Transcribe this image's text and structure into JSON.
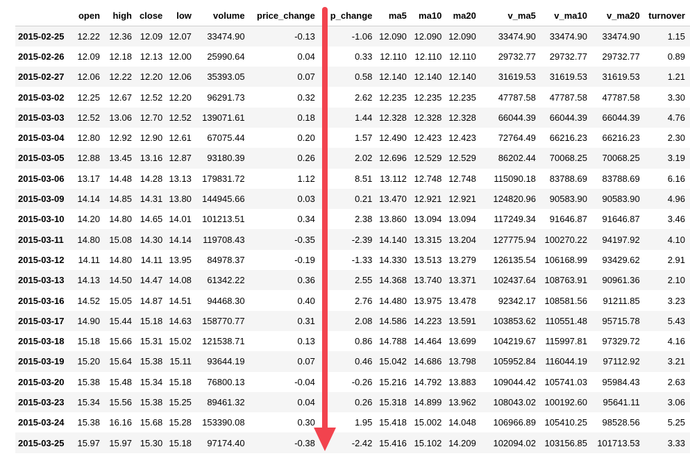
{
  "table": {
    "index_header": "",
    "columns": [
      "open",
      "high",
      "close",
      "low",
      "volume",
      "price_change",
      "p_change",
      "ma5",
      "ma10",
      "ma20",
      "v_ma5",
      "v_ma10",
      "v_ma20",
      "turnover"
    ],
    "rows": [
      {
        "date": "2015-02-25",
        "cells": [
          "12.22",
          "12.36",
          "12.09",
          "12.07",
          "33474.90",
          "-0.13",
          "-1.06",
          "12.090",
          "12.090",
          "12.090",
          "33474.90",
          "33474.90",
          "33474.90",
          "1.15"
        ]
      },
      {
        "date": "2015-02-26",
        "cells": [
          "12.09",
          "12.18",
          "12.13",
          "12.00",
          "25990.64",
          "0.04",
          "0.33",
          "12.110",
          "12.110",
          "12.110",
          "29732.77",
          "29732.77",
          "29732.77",
          "0.89"
        ]
      },
      {
        "date": "2015-02-27",
        "cells": [
          "12.06",
          "12.22",
          "12.20",
          "12.06",
          "35393.05",
          "0.07",
          "0.58",
          "12.140",
          "12.140",
          "12.140",
          "31619.53",
          "31619.53",
          "31619.53",
          "1.21"
        ]
      },
      {
        "date": "2015-03-02",
        "cells": [
          "12.25",
          "12.67",
          "12.52",
          "12.20",
          "96291.73",
          "0.32",
          "2.62",
          "12.235",
          "12.235",
          "12.235",
          "47787.58",
          "47787.58",
          "47787.58",
          "3.30"
        ]
      },
      {
        "date": "2015-03-03",
        "cells": [
          "12.52",
          "13.06",
          "12.70",
          "12.52",
          "139071.61",
          "0.18",
          "1.44",
          "12.328",
          "12.328",
          "12.328",
          "66044.39",
          "66044.39",
          "66044.39",
          "4.76"
        ]
      },
      {
        "date": "2015-03-04",
        "cells": [
          "12.80",
          "12.92",
          "12.90",
          "12.61",
          "67075.44",
          "0.20",
          "1.57",
          "12.490",
          "12.423",
          "12.423",
          "72764.49",
          "66216.23",
          "66216.23",
          "2.30"
        ]
      },
      {
        "date": "2015-03-05",
        "cells": [
          "12.88",
          "13.45",
          "13.16",
          "12.87",
          "93180.39",
          "0.26",
          "2.02",
          "12.696",
          "12.529",
          "12.529",
          "86202.44",
          "70068.25",
          "70068.25",
          "3.19"
        ]
      },
      {
        "date": "2015-03-06",
        "cells": [
          "13.17",
          "14.48",
          "14.28",
          "13.13",
          "179831.72",
          "1.12",
          "8.51",
          "13.112",
          "12.748",
          "12.748",
          "115090.18",
          "83788.69",
          "83788.69",
          "6.16"
        ]
      },
      {
        "date": "2015-03-09",
        "cells": [
          "14.14",
          "14.85",
          "14.31",
          "13.80",
          "144945.66",
          "0.03",
          "0.21",
          "13.470",
          "12.921",
          "12.921",
          "124820.96",
          "90583.90",
          "90583.90",
          "4.96"
        ]
      },
      {
        "date": "2015-03-10",
        "cells": [
          "14.20",
          "14.80",
          "14.65",
          "14.01",
          "101213.51",
          "0.34",
          "2.38",
          "13.860",
          "13.094",
          "13.094",
          "117249.34",
          "91646.87",
          "91646.87",
          "3.46"
        ]
      },
      {
        "date": "2015-03-11",
        "cells": [
          "14.80",
          "15.08",
          "14.30",
          "14.14",
          "119708.43",
          "-0.35",
          "-2.39",
          "14.140",
          "13.315",
          "13.204",
          "127775.94",
          "100270.22",
          "94197.92",
          "4.10"
        ]
      },
      {
        "date": "2015-03-12",
        "cells": [
          "14.11",
          "14.80",
          "14.11",
          "13.95",
          "84978.37",
          "-0.19",
          "-1.33",
          "14.330",
          "13.513",
          "13.279",
          "126135.54",
          "106168.99",
          "93429.62",
          "2.91"
        ]
      },
      {
        "date": "2015-03-13",
        "cells": [
          "14.13",
          "14.50",
          "14.47",
          "14.08",
          "61342.22",
          "0.36",
          "2.55",
          "14.368",
          "13.740",
          "13.371",
          "102437.64",
          "108763.91",
          "90961.36",
          "2.10"
        ]
      },
      {
        "date": "2015-03-16",
        "cells": [
          "14.52",
          "15.05",
          "14.87",
          "14.51",
          "94468.30",
          "0.40",
          "2.76",
          "14.480",
          "13.975",
          "13.478",
          "92342.17",
          "108581.56",
          "91211.85",
          "3.23"
        ]
      },
      {
        "date": "2015-03-17",
        "cells": [
          "14.90",
          "15.44",
          "15.18",
          "14.63",
          "158770.77",
          "0.31",
          "2.08",
          "14.586",
          "14.223",
          "13.591",
          "103853.62",
          "110551.48",
          "95715.78",
          "5.43"
        ]
      },
      {
        "date": "2015-03-18",
        "cells": [
          "15.18",
          "15.66",
          "15.31",
          "15.02",
          "121538.71",
          "0.13",
          "0.86",
          "14.788",
          "14.464",
          "13.699",
          "104219.67",
          "115997.81",
          "97329.72",
          "4.16"
        ]
      },
      {
        "date": "2015-03-19",
        "cells": [
          "15.20",
          "15.64",
          "15.38",
          "15.11",
          "93644.19",
          "0.07",
          "0.46",
          "15.042",
          "14.686",
          "13.798",
          "105952.84",
          "116044.19",
          "97112.92",
          "3.21"
        ]
      },
      {
        "date": "2015-03-20",
        "cells": [
          "15.38",
          "15.48",
          "15.34",
          "15.18",
          "76800.13",
          "-0.04",
          "-0.26",
          "15.216",
          "14.792",
          "13.883",
          "109044.42",
          "105741.03",
          "95984.43",
          "2.63"
        ]
      },
      {
        "date": "2015-03-23",
        "cells": [
          "15.34",
          "15.56",
          "15.38",
          "15.25",
          "89461.32",
          "0.04",
          "0.26",
          "15.318",
          "14.899",
          "13.962",
          "108043.02",
          "100192.60",
          "95641.11",
          "3.06"
        ]
      },
      {
        "date": "2015-03-24",
        "cells": [
          "15.38",
          "16.16",
          "15.68",
          "15.28",
          "153390.08",
          "0.30",
          "1.95",
          "15.418",
          "15.002",
          "14.048",
          "106966.89",
          "105410.25",
          "98528.56",
          "5.25"
        ]
      },
      {
        "date": "2015-03-25",
        "cells": [
          "15.97",
          "15.97",
          "15.30",
          "15.18",
          "97174.40",
          "-0.38",
          "-2.42",
          "15.416",
          "15.102",
          "14.209",
          "102094.02",
          "103156.85",
          "101713.53",
          "3.33"
        ]
      }
    ]
  },
  "annotation": {
    "arrow_color": "#f2434e",
    "arrow_direction": "down"
  }
}
